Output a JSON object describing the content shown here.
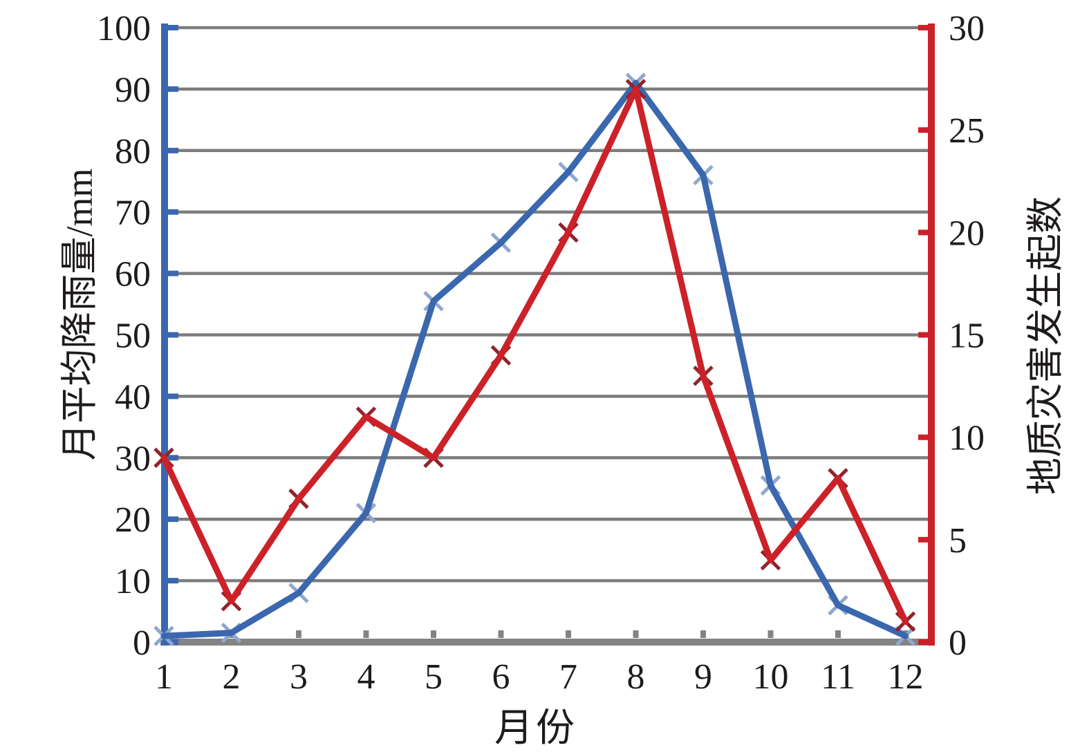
{
  "figure": {
    "title": "",
    "x_axis_label": "月份",
    "left_axis_label": "月平均降雨量/mm",
    "right_axis_label": "地质灾害发生起数"
  },
  "chart_data": {
    "type": "line",
    "xlabel": "月份",
    "x": [
      1,
      2,
      3,
      4,
      5,
      6,
      7,
      8,
      9,
      10,
      11,
      12
    ],
    "x_tick_labels": [
      "1",
      "2",
      "3",
      "4",
      "5",
      "6",
      "7",
      "8",
      "9",
      "10",
      "11",
      "12"
    ],
    "series": [
      {
        "name": "月平均降雨量/mm",
        "axis": "left",
        "values": [
          1,
          1.5,
          8,
          21,
          55.5,
          65,
          76.5,
          91,
          76,
          25.5,
          6,
          1
        ],
        "color": "#3a67ad",
        "marker_color": "#8fa8cf",
        "marker": "x"
      },
      {
        "name": "地质灾害发生起数",
        "axis": "right",
        "values": [
          9,
          2,
          7,
          11,
          9,
          14,
          20,
          27,
          13,
          4,
          8,
          1
        ],
        "color": "#cc2128",
        "marker_color": "#92232b",
        "marker": "x"
      }
    ],
    "left_axis": {
      "label": "月平均降雨量/mm",
      "min": 0,
      "max": 100,
      "tick_step": 10,
      "ticks": [
        0,
        10,
        20,
        30,
        40,
        50,
        60,
        70,
        80,
        90,
        100
      ],
      "color": "#3a67ad"
    },
    "right_axis": {
      "label": "地质灾害发生起数",
      "min": 0,
      "max": 30,
      "tick_step": 5,
      "ticks": [
        0,
        5,
        10,
        15,
        20,
        25,
        30
      ],
      "color": "#cc2128"
    },
    "grid": {
      "on": true,
      "color": "#7d7d7d"
    },
    "x_axis_color": "#838383",
    "legend": "none"
  }
}
